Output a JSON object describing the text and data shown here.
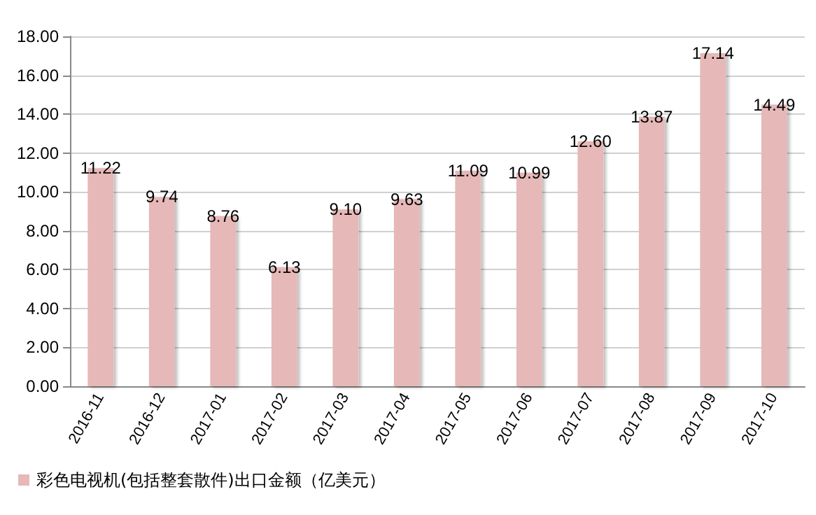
{
  "chart_data": {
    "type": "bar",
    "categories": [
      "2016-11",
      "2016-12",
      "2017-01",
      "2017-02",
      "2017-03",
      "2017-04",
      "2017-05",
      "2017-06",
      "2017-07",
      "2017-08",
      "2017-09",
      "2017-10"
    ],
    "series": [
      {
        "name": "彩色电视机(包括整套散件)出口金额（亿美元）",
        "color": "#e6b8b7",
        "values": [
          11.22,
          9.74,
          8.76,
          6.13,
          9.1,
          9.63,
          11.09,
          10.99,
          12.6,
          13.87,
          17.14,
          14.49
        ],
        "value_labels": [
          "11.22",
          "9.74",
          "8.76",
          "6.13",
          "9.10",
          "9.63",
          "11.09",
          "10.99",
          "12.60",
          "13.87",
          "17.14",
          "14.49"
        ]
      }
    ],
    "ylim": [
      0,
      18
    ],
    "yticks": [
      {
        "value": 0,
        "label": "0.00"
      },
      {
        "value": 2,
        "label": "2.00"
      },
      {
        "value": 4,
        "label": "4.00"
      },
      {
        "value": 6,
        "label": "6.00"
      },
      {
        "value": 8,
        "label": "8.00"
      },
      {
        "value": 10,
        "label": "10.00"
      },
      {
        "value": 12,
        "label": "12.00"
      },
      {
        "value": 14,
        "label": "14.00"
      },
      {
        "value": 16,
        "label": "16.00"
      },
      {
        "value": 18,
        "label": "18.00"
      }
    ],
    "grid": "y",
    "legend": "bottom left"
  }
}
